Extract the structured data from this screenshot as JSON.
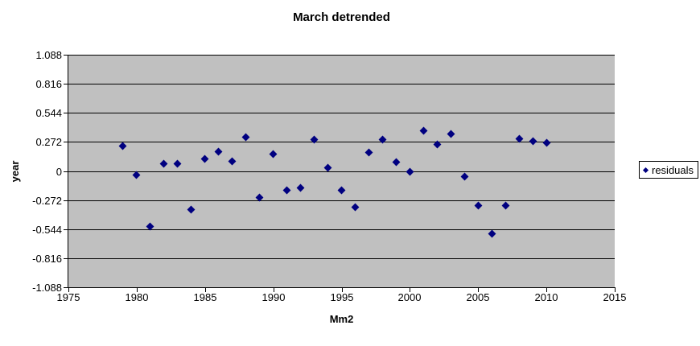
{
  "chart": {
    "title": "March detrended",
    "x_axis_title": "Mm2",
    "y_axis_title": "year",
    "legend": {
      "label": "residuals",
      "marker": "diamond-icon",
      "marker_color": "#000080"
    }
  },
  "chart_data": {
    "type": "scatter",
    "title": "March detrended",
    "xlabel": "Mm2",
    "ylabel": "year",
    "xlim": [
      1975,
      2015
    ],
    "ylim": [
      -1.088,
      1.088
    ],
    "x_ticks": [
      1975,
      1980,
      1985,
      1990,
      1995,
      2000,
      2005,
      2010,
      2015
    ],
    "y_ticks": [
      1.088,
      0.816,
      0.544,
      0.272,
      0,
      -0.272,
      -0.544,
      -0.816,
      -1.088
    ],
    "grid": "horizontal-major",
    "legend_position": "right",
    "plot_area_color": "#c0c0c0",
    "gridline_color": "#000000",
    "background_color": "#ffffff",
    "marker_color": "#000080",
    "series": [
      {
        "name": "residuals",
        "marker": "diamond",
        "color": "#000080",
        "x": [
          1979,
          1980,
          1981,
          1982,
          1983,
          1984,
          1985,
          1986,
          1987,
          1988,
          1989,
          1990,
          1991,
          1992,
          1993,
          1994,
          1995,
          1996,
          1997,
          1998,
          1999,
          2000,
          2001,
          2002,
          2003,
          2004,
          2005,
          2006,
          2007,
          2008,
          2009,
          2010
        ],
        "y": [
          0.23,
          -0.04,
          -0.52,
          0.07,
          0.07,
          -0.36,
          0.11,
          0.18,
          0.09,
          0.32,
          -0.25,
          0.16,
          -0.18,
          -0.16,
          0.29,
          0.03,
          -0.18,
          -0.34,
          0.17,
          0.29,
          0.08,
          -0.01,
          0.38,
          0.25,
          0.35,
          -0.05,
          -0.32,
          -0.59,
          -0.32,
          0.3,
          0.28,
          0.26
        ]
      }
    ]
  }
}
